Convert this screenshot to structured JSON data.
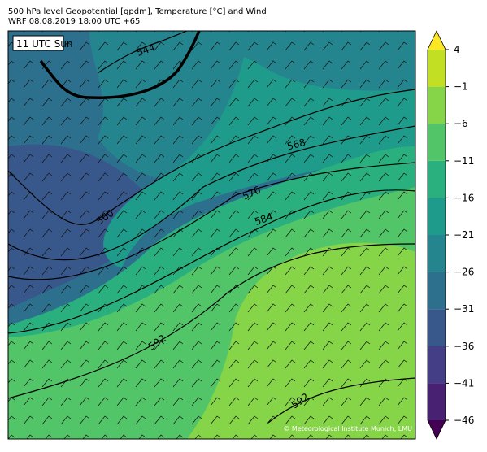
{
  "header": {
    "title": "500 hPa level Geopotential [gpdm], Temperature [°C] and Wind",
    "subtitle": "WRF 08.08.2019 18:00 UTC +65"
  },
  "map": {
    "time_label": "11 UTC Sun",
    "copyright": "© Meteorological Institute Munich, LMU",
    "contour_labels": [
      544,
      560,
      568,
      576,
      584,
      592,
      592
    ]
  },
  "colorbar": {
    "ticks": [
      {
        "value": -46,
        "label": "−46"
      },
      {
        "value": -41,
        "label": "−41"
      },
      {
        "value": -36,
        "label": "−36"
      },
      {
        "value": -31,
        "label": "−31"
      },
      {
        "value": -26,
        "label": "−26"
      },
      {
        "value": -21,
        "label": "−21"
      },
      {
        "value": -16,
        "label": "−16"
      },
      {
        "value": -11,
        "label": "−11"
      },
      {
        "value": -6,
        "label": "−6"
      },
      {
        "value": -1,
        "label": "−1"
      },
      4
    ],
    "colors": [
      "#482173",
      "#433e85",
      "#38588c",
      "#2d708e",
      "#25858e",
      "#1e9b8a",
      "#2ab07f",
      "#52c569",
      "#86d549",
      "#c2df23"
    ],
    "under_color": "#440154",
    "over_color": "#fde725"
  }
}
